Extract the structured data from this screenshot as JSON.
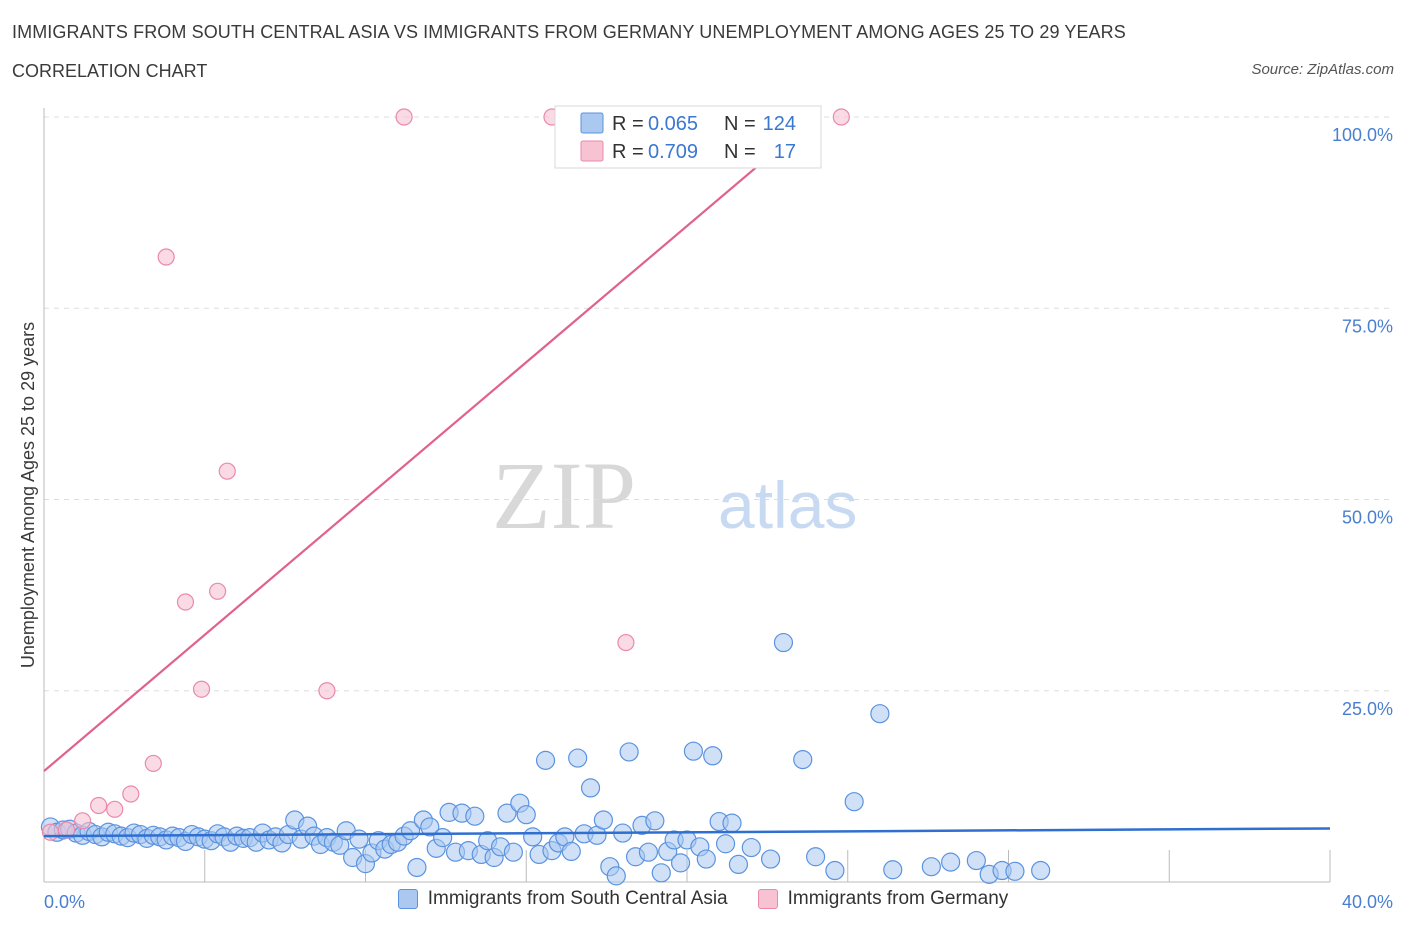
{
  "header": {
    "title": "IMMIGRANTS FROM SOUTH CENTRAL ASIA VS IMMIGRANTS FROM GERMANY UNEMPLOYMENT AMONG AGES 25 TO 29 YEARS",
    "subtitle": "CORRELATION CHART",
    "source": "Source: ZipAtlas.com"
  },
  "watermark": {
    "part1": "ZIP",
    "part2": "atlas"
  },
  "colors": {
    "blue_fill": "#aac8f0",
    "blue_stroke": "#5b93e0",
    "blue_line": "#2f6fd0",
    "pink_fill": "#f7c2d2",
    "pink_stroke": "#ea8aa8",
    "pink_line": "#e0628a",
    "axis_text": "#4a7fd0",
    "grid": "#dddddd"
  },
  "legend": {
    "r_label": "R =",
    "n_label": "N =",
    "series": [
      {
        "name": "Immigrants from South Central Asia",
        "r": "0.065",
        "n": "124",
        "color": "blue"
      },
      {
        "name": "Immigrants from Germany",
        "r": "0.709",
        "n": "17",
        "color": "pink"
      }
    ]
  },
  "chart_data": {
    "type": "scatter",
    "title": "IMMIGRANTS FROM SOUTH CENTRAL ASIA VS IMMIGRANTS FROM GERMANY UNEMPLOYMENT AMONG AGES 25 TO 29 YEARS",
    "xlabel": "",
    "ylabel": "Unemployment Among Ages 25 to 29 years",
    "xlim": [
      0,
      40
    ],
    "ylim": [
      0,
      100
    ],
    "x_tick_labels": [
      "0.0%",
      "40.0%"
    ],
    "y_ticks": [
      25,
      50,
      75,
      100
    ],
    "y_tick_labels": [
      "25.0%",
      "50.0%",
      "75.0%",
      "100.0%"
    ],
    "legend_position": "top-center",
    "series": [
      {
        "name": "Immigrants from South Central Asia",
        "color": "blue",
        "trend": {
          "x0": 0,
          "y0": 6.0,
          "x1": 40,
          "y1": 7.0
        },
        "points": [
          [
            0.2,
            7.2
          ],
          [
            0.4,
            6.5
          ],
          [
            0.6,
            6.8
          ],
          [
            0.8,
            6.9
          ],
          [
            1.0,
            6.4
          ],
          [
            1.2,
            6.1
          ],
          [
            1.4,
            6.6
          ],
          [
            1.6,
            6.2
          ],
          [
            1.8,
            5.9
          ],
          [
            2.0,
            6.5
          ],
          [
            2.2,
            6.3
          ],
          [
            2.4,
            6.0
          ],
          [
            2.6,
            5.8
          ],
          [
            2.8,
            6.4
          ],
          [
            3.0,
            6.2
          ],
          [
            3.2,
            5.7
          ],
          [
            3.4,
            6.1
          ],
          [
            3.6,
            5.9
          ],
          [
            3.8,
            5.5
          ],
          [
            4.0,
            6.0
          ],
          [
            4.2,
            5.8
          ],
          [
            4.4,
            5.3
          ],
          [
            4.6,
            6.2
          ],
          [
            4.8,
            5.9
          ],
          [
            5.0,
            5.6
          ],
          [
            5.2,
            5.4
          ],
          [
            5.4,
            6.3
          ],
          [
            5.6,
            5.9
          ],
          [
            5.8,
            5.2
          ],
          [
            6.0,
            6.0
          ],
          [
            6.2,
            5.7
          ],
          [
            6.4,
            5.8
          ],
          [
            6.6,
            5.2
          ],
          [
            6.8,
            6.4
          ],
          [
            7.0,
            5.5
          ],
          [
            7.2,
            5.9
          ],
          [
            7.4,
            5.1
          ],
          [
            7.6,
            6.2
          ],
          [
            7.8,
            8.1
          ],
          [
            8.0,
            5.6
          ],
          [
            8.2,
            7.3
          ],
          [
            8.4,
            6.0
          ],
          [
            8.6,
            4.9
          ],
          [
            8.8,
            5.8
          ],
          [
            9.0,
            5.2
          ],
          [
            9.2,
            4.8
          ],
          [
            9.4,
            6.7
          ],
          [
            9.6,
            3.2
          ],
          [
            9.8,
            5.6
          ],
          [
            10.0,
            2.4
          ],
          [
            10.2,
            3.8
          ],
          [
            10.4,
            5.4
          ],
          [
            10.6,
            4.3
          ],
          [
            10.8,
            4.9
          ],
          [
            11.0,
            5.2
          ],
          [
            11.2,
            6.0
          ],
          [
            11.4,
            6.7
          ],
          [
            11.6,
            1.9
          ],
          [
            11.8,
            8.1
          ],
          [
            12.0,
            7.2
          ],
          [
            12.2,
            4.4
          ],
          [
            12.4,
            5.8
          ],
          [
            12.6,
            9.1
          ],
          [
            12.8,
            3.9
          ],
          [
            13.0,
            9.0
          ],
          [
            13.2,
            4.1
          ],
          [
            13.4,
            8.6
          ],
          [
            13.6,
            3.6
          ],
          [
            13.8,
            5.4
          ],
          [
            14.0,
            3.2
          ],
          [
            14.2,
            4.6
          ],
          [
            14.4,
            9.0
          ],
          [
            14.6,
            3.9
          ],
          [
            14.8,
            10.3
          ],
          [
            15.0,
            8.8
          ],
          [
            15.2,
            5.9
          ],
          [
            15.4,
            3.6
          ],
          [
            15.6,
            15.9
          ],
          [
            15.8,
            4.1
          ],
          [
            16.0,
            5.1
          ],
          [
            16.2,
            5.9
          ],
          [
            16.4,
            4.0
          ],
          [
            16.6,
            16.2
          ],
          [
            16.8,
            6.3
          ],
          [
            17.0,
            12.3
          ],
          [
            17.2,
            6.1
          ],
          [
            17.4,
            8.1
          ],
          [
            17.6,
            2.0
          ],
          [
            17.8,
            0.8
          ],
          [
            18.0,
            6.4
          ],
          [
            18.2,
            17.0
          ],
          [
            18.4,
            3.3
          ],
          [
            18.6,
            7.4
          ],
          [
            18.8,
            3.9
          ],
          [
            19.0,
            8.0
          ],
          [
            19.2,
            1.2
          ],
          [
            19.4,
            4.0
          ],
          [
            19.6,
            5.5
          ],
          [
            19.8,
            2.5
          ],
          [
            20.0,
            5.5
          ],
          [
            20.2,
            17.1
          ],
          [
            20.4,
            4.6
          ],
          [
            20.6,
            3.0
          ],
          [
            20.8,
            16.5
          ],
          [
            21.0,
            7.9
          ],
          [
            21.2,
            5.0
          ],
          [
            21.4,
            7.7
          ],
          [
            21.6,
            2.3
          ],
          [
            22.0,
            4.5
          ],
          [
            22.6,
            3.0
          ],
          [
            23.0,
            31.3
          ],
          [
            23.6,
            16.0
          ],
          [
            24.0,
            3.3
          ],
          [
            24.6,
            1.5
          ],
          [
            25.2,
            10.5
          ],
          [
            26.0,
            22.0
          ],
          [
            26.4,
            1.6
          ],
          [
            27.6,
            2.0
          ],
          [
            28.2,
            2.6
          ],
          [
            29.0,
            2.8
          ],
          [
            29.4,
            1.0
          ],
          [
            29.8,
            1.5
          ],
          [
            30.2,
            1.4
          ],
          [
            31.0,
            1.5
          ]
        ]
      },
      {
        "name": "Immigrants from Germany",
        "color": "pink",
        "trend": {
          "x0": 0,
          "y0": 14.5,
          "x1": 24.0,
          "y1": 100
        },
        "points": [
          [
            0.2,
            6.5
          ],
          [
            0.7,
            6.8
          ],
          [
            1.2,
            8.0
          ],
          [
            1.7,
            10.0
          ],
          [
            2.2,
            9.5
          ],
          [
            2.7,
            11.5
          ],
          [
            3.4,
            15.5
          ],
          [
            3.8,
            81.7
          ],
          [
            4.4,
            36.6
          ],
          [
            4.9,
            25.2
          ],
          [
            5.4,
            38.0
          ],
          [
            5.7,
            53.7
          ],
          [
            8.8,
            25.0
          ],
          [
            11.2,
            100
          ],
          [
            15.8,
            100
          ],
          [
            18.1,
            31.3
          ],
          [
            24.8,
            100
          ]
        ]
      }
    ]
  },
  "bottom_legend": {
    "items": [
      "Immigrants from South Central Asia",
      "Immigrants from Germany"
    ]
  }
}
